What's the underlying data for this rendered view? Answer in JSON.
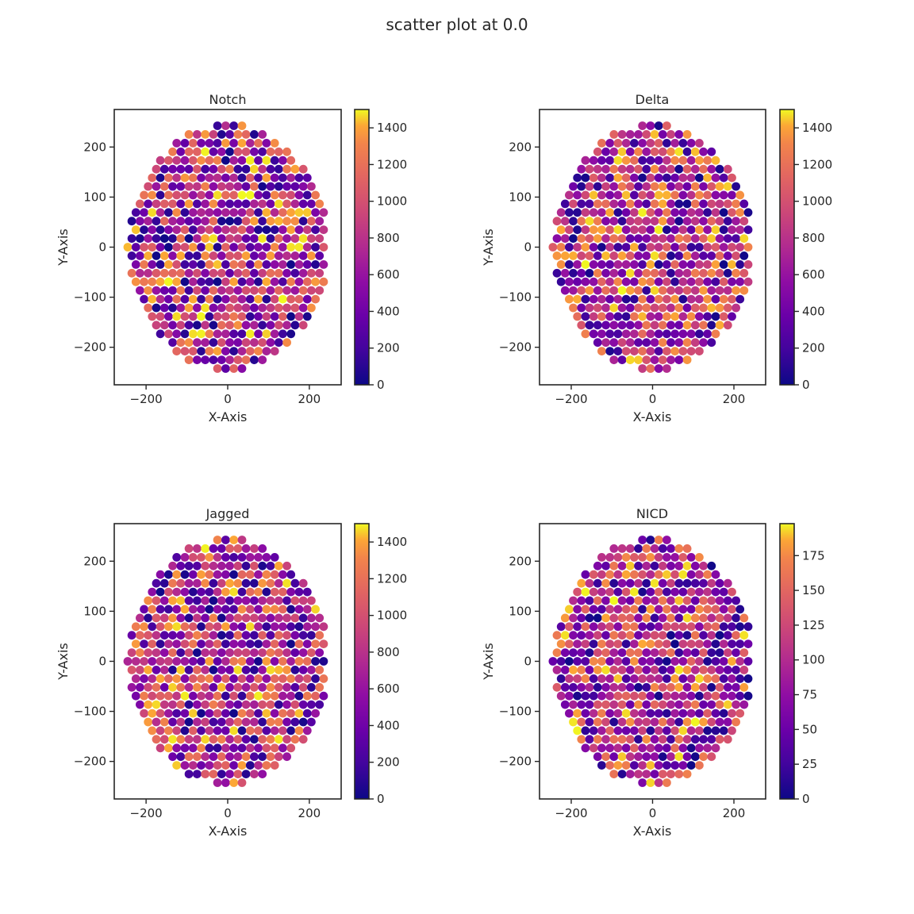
{
  "figure": {
    "suptitle": "scatter plot at 0.0"
  },
  "colormap": "plasma",
  "chart_data": [
    {
      "type": "scatter",
      "title": "Notch",
      "xlabel": "X-Axis",
      "ylabel": "Y-Axis",
      "xlim": [
        -278,
        278
      ],
      "ylim": [
        -275,
        275
      ],
      "xticks": [
        -200,
        0,
        200
      ],
      "yticks": [
        -200,
        -100,
        0,
        100,
        200
      ],
      "colorbar": {
        "range": [
          0,
          1500
        ],
        "ticks": [
          0,
          200,
          400,
          600,
          800,
          1000,
          1200,
          1400
        ]
      },
      "points": {
        "layout": "hexagonal cell lattice inside ellipse",
        "center": [
          0,
          0
        ],
        "semi_axes": [
          245,
          245
        ],
        "spacing": 20,
        "value_range": [
          0,
          1500
        ]
      }
    },
    {
      "type": "scatter",
      "title": "Delta",
      "xlabel": "X-Axis",
      "ylabel": "Y-Axis",
      "xlim": [
        -278,
        278
      ],
      "ylim": [
        -275,
        275
      ],
      "xticks": [
        -200,
        0,
        200
      ],
      "yticks": [
        -200,
        -100,
        0,
        100,
        200
      ],
      "colorbar": {
        "range": [
          0,
          1500
        ],
        "ticks": [
          0,
          200,
          400,
          600,
          800,
          1000,
          1200,
          1400
        ]
      },
      "points": {
        "layout": "hexagonal cell lattice inside ellipse",
        "center": [
          0,
          0
        ],
        "semi_axes": [
          245,
          245
        ],
        "spacing": 20,
        "value_range": [
          0,
          1500
        ]
      }
    },
    {
      "type": "scatter",
      "title": "Jagged",
      "xlabel": "X-Axis",
      "ylabel": "Y-Axis",
      "xlim": [
        -278,
        278
      ],
      "ylim": [
        -275,
        275
      ],
      "xticks": [
        -200,
        0,
        200
      ],
      "yticks": [
        -200,
        -100,
        0,
        100,
        200
      ],
      "colorbar": {
        "range": [
          0,
          1500
        ],
        "ticks": [
          0,
          200,
          400,
          600,
          800,
          1000,
          1200,
          1400
        ]
      },
      "points": {
        "layout": "hexagonal cell lattice inside ellipse",
        "center": [
          0,
          0
        ],
        "semi_axes": [
          245,
          245
        ],
        "spacing": 20,
        "value_range": [
          0,
          1500
        ]
      }
    },
    {
      "type": "scatter",
      "title": "NICD",
      "xlabel": "X-Axis",
      "ylabel": "Y-Axis",
      "xlim": [
        -278,
        278
      ],
      "ylim": [
        -275,
        275
      ],
      "xticks": [
        -200,
        0,
        200
      ],
      "yticks": [
        -200,
        -100,
        0,
        100,
        200
      ],
      "colorbar": {
        "range": [
          0,
          198
        ],
        "ticks": [
          0,
          25,
          50,
          75,
          100,
          125,
          150,
          175
        ]
      },
      "points": {
        "layout": "hexagonal cell lattice inside ellipse",
        "center": [
          0,
          0
        ],
        "semi_axes": [
          245,
          245
        ],
        "spacing": 20,
        "value_range": [
          0,
          198
        ]
      }
    }
  ]
}
